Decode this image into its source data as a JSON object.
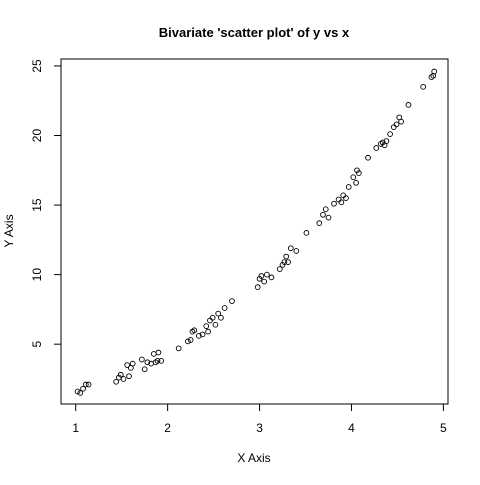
{
  "chart_data": {
    "type": "scatter",
    "title": "Bivariate 'scatter plot' of y vs x",
    "xlabel": "X Axis",
    "ylabel": "Y Axis",
    "xlim": [
      0.84,
      5.05
    ],
    "ylim": [
      0.7,
      25.5
    ],
    "x_ticks": [
      1,
      2,
      3,
      4,
      5
    ],
    "x_tick_labels": [
      "1",
      "2",
      "3",
      "4",
      "5"
    ],
    "y_ticks": [
      5,
      10,
      15,
      20,
      25
    ],
    "y_tick_labels": [
      "5",
      "10",
      "15",
      "20",
      "25"
    ],
    "grid": false,
    "marker": "open-circle",
    "colors": {
      "point": "#000000",
      "axis": "#000000",
      "background": "#ffffff"
    },
    "series": [
      {
        "x": [
          1.02,
          1.05,
          1.08,
          1.11,
          1.14,
          1.44,
          1.47,
          1.49,
          1.52,
          1.56,
          1.58,
          1.6,
          1.62,
          1.72,
          1.75,
          1.78,
          1.82,
          1.85,
          1.87,
          1.89,
          1.9,
          1.93,
          2.12,
          2.22,
          2.25,
          2.27,
          2.29,
          2.34,
          2.38,
          2.42,
          2.44,
          2.46,
          2.49,
          2.52,
          2.55,
          2.58,
          2.62,
          2.7,
          2.98,
          3.0,
          3.02,
          3.05,
          3.08,
          3.13,
          3.22,
          3.25,
          3.27,
          3.29,
          3.31,
          3.34,
          3.4,
          3.51,
          3.65,
          3.69,
          3.72,
          3.75,
          3.81,
          3.86,
          3.89,
          3.91,
          3.94,
          3.97,
          4.02,
          4.05,
          4.06,
          4.08,
          4.18,
          4.27,
          4.32,
          4.34,
          4.36,
          4.38,
          4.42,
          4.46,
          4.49,
          4.52,
          4.54,
          4.62,
          4.78,
          4.87,
          4.89,
          4.9
        ],
        "y": [
          1.6,
          1.5,
          1.8,
          2.1,
          2.1,
          2.3,
          2.6,
          2.8,
          2.5,
          3.5,
          2.7,
          3.3,
          3.6,
          3.9,
          3.2,
          3.7,
          3.6,
          4.3,
          3.7,
          3.8,
          4.4,
          3.8,
          4.7,
          5.2,
          5.3,
          5.9,
          6.0,
          5.6,
          5.7,
          6.3,
          5.9,
          6.7,
          6.9,
          6.4,
          7.2,
          6.9,
          7.6,
          8.1,
          9.1,
          9.7,
          9.9,
          9.5,
          10.0,
          9.8,
          10.4,
          10.7,
          10.9,
          11.3,
          10.9,
          11.9,
          11.7,
          13.0,
          13.7,
          14.3,
          14.7,
          14.1,
          15.1,
          15.4,
          15.2,
          15.7,
          15.5,
          16.3,
          17.0,
          16.6,
          17.5,
          17.3,
          18.4,
          19.1,
          19.4,
          19.5,
          19.3,
          19.6,
          20.1,
          20.6,
          20.8,
          21.3,
          21.0,
          22.2,
          23.5,
          24.2,
          24.3,
          24.6
        ]
      }
    ]
  }
}
